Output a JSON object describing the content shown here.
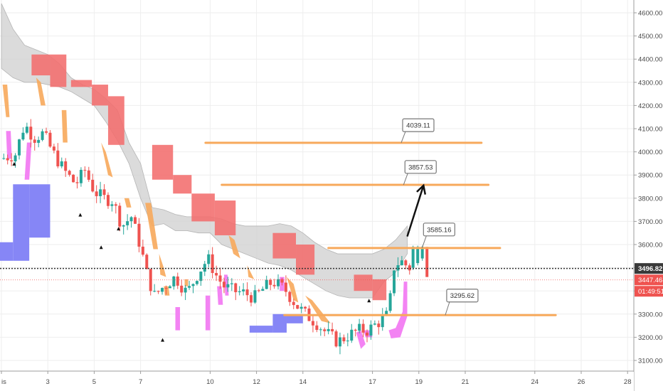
{
  "chart_data": {
    "type": "candlestick",
    "indicator": "Ichimoku cloud with Heikin-style kumo bands",
    "ylim": [
      3075,
      4660
    ],
    "xlim": [
      0,
      28.5
    ],
    "y_ticks": [
      "3100.00",
      "3200.00",
      "3300.00",
      "3400.00",
      "3500.00",
      "3600.00",
      "3700.00",
      "3800.00",
      "3900.00",
      "4000.00",
      "4100.00",
      "4200.00",
      "4300.00",
      "4400.00",
      "4500.00",
      "4600.00"
    ],
    "y_tick_values": [
      3100,
      3200,
      3300,
      3400,
      3500,
      3600,
      3700,
      3800,
      3900,
      4000,
      4100,
      4200,
      4300,
      4400,
      4500,
      4600
    ],
    "x_ticks": [
      "is",
      "3",
      "5",
      "7",
      "10",
      "12",
      "14",
      "17",
      "19",
      "21",
      "24",
      "26",
      "28"
    ],
    "x_tick_values": [
      0,
      2,
      4,
      6,
      9,
      11,
      13,
      16,
      18,
      20,
      23,
      25,
      27
    ],
    "price_tags": [
      {
        "label": "3496.82",
        "value": 3496.82,
        "color": "#3a3a3a"
      },
      {
        "label": "3447.46",
        "value": 3447.46,
        "color": "#ef5350"
      },
      {
        "label": "01:49:51",
        "value": 3410,
        "color": "#ef5350"
      }
    ],
    "horizontal_lines": [
      {
        "label": "4039.11",
        "value": 4039.11,
        "x_start": 8.8,
        "x_end": 20.7,
        "callout_x": 17.3,
        "callout_y": 4115
      },
      {
        "label": "3857.53",
        "value": 3857.53,
        "x_start": 9.5,
        "x_end": 21.0,
        "callout_x": 17.4,
        "callout_y": 3935
      },
      {
        "label": "3585.16",
        "value": 3585.16,
        "x_start": 14.1,
        "x_end": 21.5,
        "callout_x": 18.2,
        "callout_y": 3665
      },
      {
        "label": "3295.62",
        "value": 3295.62,
        "x_start": 12.2,
        "x_end": 23.9,
        "callout_x": 19.2,
        "callout_y": 3380
      }
    ],
    "arrow": {
      "from": [
        17.5,
        3635
      ],
      "to": [
        18.2,
        3855
      ],
      "color": "#111111"
    },
    "cloud": [
      {
        "x": 0,
        "top": 4640,
        "bottom": 4360
      },
      {
        "x": 0.5,
        "top": 4530,
        "bottom": 4320
      },
      {
        "x": 1,
        "top": 4460,
        "bottom": 4300
      },
      {
        "x": 1.5,
        "top": 4440,
        "bottom": 4300
      },
      {
        "x": 2,
        "top": 4420,
        "bottom": 4290
      },
      {
        "x": 2.5,
        "top": 4380,
        "bottom": 4280
      },
      {
        "x": 3,
        "top": 4320,
        "bottom": 4260
      },
      {
        "x": 3.5,
        "top": 4290,
        "bottom": 4230
      },
      {
        "x": 4,
        "top": 4270,
        "bottom": 4200
      },
      {
        "x": 4.5,
        "top": 4230,
        "bottom": 4130
      },
      {
        "x": 5,
        "top": 4180,
        "bottom": 4050
      },
      {
        "x": 5.5,
        "top": 4040,
        "bottom": 3950
      },
      {
        "x": 6,
        "top": 3950,
        "bottom": 3800
      },
      {
        "x": 6.5,
        "top": 3760,
        "bottom": 3680
      },
      {
        "x": 7,
        "top": 3750,
        "bottom": 3690
      },
      {
        "x": 7.5,
        "top": 3730,
        "bottom": 3660
      },
      {
        "x": 8,
        "top": 3720,
        "bottom": 3660
      },
      {
        "x": 8.5,
        "top": 3720,
        "bottom": 3650
      },
      {
        "x": 9,
        "top": 3720,
        "bottom": 3650
      },
      {
        "x": 9.5,
        "top": 3710,
        "bottom": 3600
      },
      {
        "x": 10,
        "top": 3690,
        "bottom": 3580
      },
      {
        "x": 10.5,
        "top": 3680,
        "bottom": 3560
      },
      {
        "x": 11,
        "top": 3680,
        "bottom": 3540
      },
      {
        "x": 11.5,
        "top": 3680,
        "bottom": 3520
      },
      {
        "x": 12,
        "top": 3690,
        "bottom": 3510
      },
      {
        "x": 12.5,
        "top": 3680,
        "bottom": 3490
      },
      {
        "x": 13,
        "top": 3650,
        "bottom": 3460
      },
      {
        "x": 13.5,
        "top": 3610,
        "bottom": 3430
      },
      {
        "x": 14,
        "top": 3580,
        "bottom": 3400
      },
      {
        "x": 14.5,
        "top": 3560,
        "bottom": 3380
      },
      {
        "x": 15,
        "top": 3560,
        "bottom": 3370
      },
      {
        "x": 15.5,
        "top": 3560,
        "bottom": 3370
      },
      {
        "x": 16,
        "top": 3560,
        "bottom": 3370
      },
      {
        "x": 16.5,
        "top": 3580,
        "bottom": 3440
      },
      {
        "x": 17,
        "top": 3620,
        "bottom": 3480
      },
      {
        "x": 17.5,
        "top": 3680,
        "bottom": 3560
      }
    ],
    "red_blocks": [
      {
        "x0": 1.3,
        "x1": 2.1,
        "top": 4420,
        "bottom": 4330
      },
      {
        "x0": 2.1,
        "x1": 2.8,
        "top": 4420,
        "bottom": 4280
      },
      {
        "x0": 3.0,
        "x1": 3.9,
        "top": 4310,
        "bottom": 4280
      },
      {
        "x0": 3.9,
        "x1": 4.6,
        "top": 4290,
        "bottom": 4200
      },
      {
        "x0": 4.6,
        "x1": 5.3,
        "top": 4240,
        "bottom": 4030
      },
      {
        "x0": 6.5,
        "x1": 7.4,
        "top": 4030,
        "bottom": 3880
      },
      {
        "x0": 7.4,
        "x1": 8.2,
        "top": 3900,
        "bottom": 3820
      },
      {
        "x0": 8.2,
        "x1": 9.2,
        "top": 3820,
        "bottom": 3700
      },
      {
        "x0": 9.2,
        "x1": 10.1,
        "top": 3790,
        "bottom": 3640
      },
      {
        "x0": 11.7,
        "x1": 12.7,
        "top": 3650,
        "bottom": 3540
      },
      {
        "x0": 12.7,
        "x1": 13.5,
        "top": 3600,
        "bottom": 3470
      },
      {
        "x0": 15.2,
        "x1": 16.0,
        "top": 3470,
        "bottom": 3400
      },
      {
        "x0": 16.0,
        "x1": 16.6,
        "top": 3450,
        "bottom": 3360
      }
    ],
    "blue_blocks": [
      {
        "x0": -0.3,
        "x1": 0.5,
        "top": 3610,
        "bottom": 3530
      },
      {
        "x0": 0.5,
        "x1": 1.2,
        "top": 3860,
        "bottom": 3530
      },
      {
        "x0": 1.2,
        "x1": 2.1,
        "top": 3860,
        "bottom": 3630
      },
      {
        "x0": 10.7,
        "x1": 11.7,
        "top": 3250,
        "bottom": 3220
      },
      {
        "x0": 11.7,
        "x1": 12.3,
        "top": 3300,
        "bottom": 3220
      },
      {
        "x0": 12.3,
        "x1": 13.0,
        "top": 3300,
        "bottom": 3260
      }
    ]
  }
}
